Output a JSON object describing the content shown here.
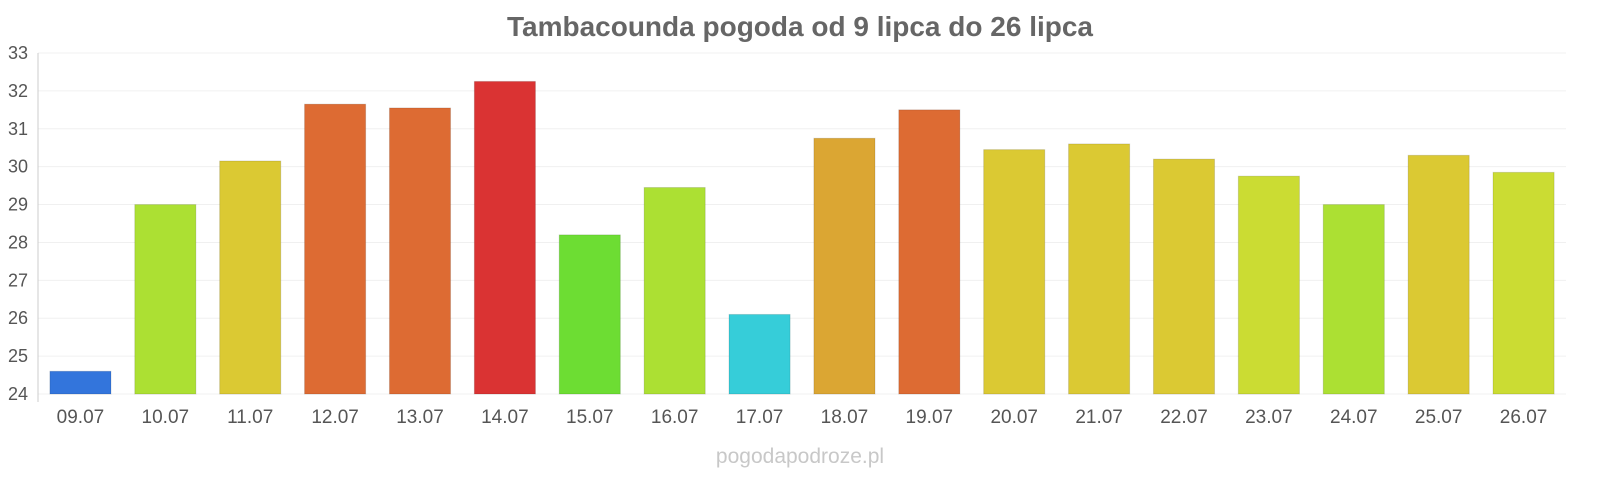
{
  "chart_data": {
    "type": "bar",
    "title": "Tambacounda pogoda od 9 lipca do 26 lipca",
    "categories": [
      "09.07",
      "10.07",
      "11.07",
      "12.07",
      "13.07",
      "14.07",
      "15.07",
      "16.07",
      "17.07",
      "18.07",
      "19.07",
      "20.07",
      "21.07",
      "22.07",
      "23.07",
      "24.07",
      "25.07",
      "26.07"
    ],
    "values": [
      24.6,
      29.0,
      30.15,
      31.65,
      31.55,
      32.25,
      28.2,
      29.45,
      26.1,
      30.75,
      31.5,
      30.45,
      30.6,
      30.2,
      29.75,
      29.0,
      30.3,
      29.85
    ],
    "colors": [
      "#3375dc",
      "#ace033",
      "#dbc933",
      "#dd6b33",
      "#dd6b33",
      "#da3333",
      "#6ddd33",
      "#ace033",
      "#36cdd9",
      "#dba633",
      "#dd6b33",
      "#dbc933",
      "#dbc933",
      "#dbc933",
      "#cbdc33",
      "#ace033",
      "#dbc933",
      "#cbdc33"
    ],
    "ylim": [
      24,
      33
    ],
    "yticks": [
      24,
      25,
      26,
      27,
      28,
      29,
      30,
      31,
      32,
      33
    ],
    "xlabel": "",
    "ylabel": "",
    "grid": true
  },
  "credit": "pogodapodroze.pl"
}
